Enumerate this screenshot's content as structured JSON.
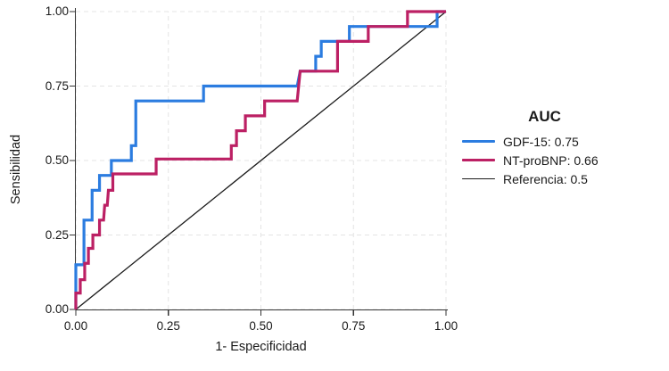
{
  "chart_data": {
    "type": "line",
    "subtype": "roc-step-curves",
    "xlabel": "1- Especificidad",
    "ylabel": "Sensibilidad",
    "xlim": [
      0,
      1
    ],
    "ylim": [
      0,
      1
    ],
    "grid": "dashed-light",
    "x_ticks": [
      {
        "v": 0.0,
        "label": "0.00"
      },
      {
        "v": 0.25,
        "label": "0.25"
      },
      {
        "v": 0.5,
        "label": "0.50"
      },
      {
        "v": 0.75,
        "label": "0.75"
      },
      {
        "v": 1.0,
        "label": "1.00"
      }
    ],
    "y_ticks": [
      {
        "v": 0.0,
        "label": "0.00"
      },
      {
        "v": 0.25,
        "label": "0.25"
      },
      {
        "v": 0.5,
        "label": "0.50"
      },
      {
        "v": 0.75,
        "label": "0.75"
      },
      {
        "v": 1.0,
        "label": "1.00"
      }
    ],
    "series": [
      {
        "key": "reference",
        "name": "Referencia",
        "auc": 0.5,
        "color": "#1a1a1a",
        "stroke_width": 1.3,
        "points": [
          [
            0,
            0
          ],
          [
            1,
            1
          ]
        ]
      },
      {
        "key": "gdf15",
        "name": "GDF-15",
        "auc": 0.75,
        "color": "#2b7ce0",
        "stroke_width": 3.2,
        "points": [
          [
            0,
            0
          ],
          [
            0,
            0.15
          ],
          [
            0.022,
            0.15
          ],
          [
            0.022,
            0.3
          ],
          [
            0.044,
            0.3
          ],
          [
            0.044,
            0.4
          ],
          [
            0.064,
            0.4
          ],
          [
            0.064,
            0.45
          ],
          [
            0.096,
            0.45
          ],
          [
            0.096,
            0.5
          ],
          [
            0.15,
            0.5
          ],
          [
            0.15,
            0.55
          ],
          [
            0.162,
            0.55
          ],
          [
            0.162,
            0.7
          ],
          [
            0.345,
            0.7
          ],
          [
            0.345,
            0.75
          ],
          [
            0.598,
            0.75
          ],
          [
            0.606,
            0.8
          ],
          [
            0.648,
            0.8
          ],
          [
            0.648,
            0.85
          ],
          [
            0.663,
            0.85
          ],
          [
            0.663,
            0.9
          ],
          [
            0.739,
            0.9
          ],
          [
            0.739,
            0.95
          ],
          [
            0.976,
            0.95
          ],
          [
            0.976,
            1
          ],
          [
            1,
            1
          ]
        ]
      },
      {
        "key": "ntprobnp",
        "name": "NT-proBNP",
        "auc": 0.66,
        "color": "#bc2064",
        "stroke_width": 3.2,
        "points": [
          [
            0,
            0
          ],
          [
            0,
            0.055
          ],
          [
            0.012,
            0.055
          ],
          [
            0.012,
            0.1
          ],
          [
            0.024,
            0.1
          ],
          [
            0.024,
            0.155
          ],
          [
            0.034,
            0.155
          ],
          [
            0.034,
            0.205
          ],
          [
            0.046,
            0.205
          ],
          [
            0.046,
            0.25
          ],
          [
            0.064,
            0.25
          ],
          [
            0.064,
            0.3
          ],
          [
            0.075,
            0.3
          ],
          [
            0.078,
            0.35
          ],
          [
            0.085,
            0.35
          ],
          [
            0.088,
            0.4
          ],
          [
            0.1,
            0.4
          ],
          [
            0.1,
            0.455
          ],
          [
            0.217,
            0.455
          ],
          [
            0.217,
            0.505
          ],
          [
            0.42,
            0.505
          ],
          [
            0.42,
            0.55
          ],
          [
            0.434,
            0.55
          ],
          [
            0.434,
            0.6
          ],
          [
            0.458,
            0.6
          ],
          [
            0.458,
            0.65
          ],
          [
            0.51,
            0.65
          ],
          [
            0.51,
            0.7
          ],
          [
            0.598,
            0.7
          ],
          [
            0.606,
            0.8
          ],
          [
            0.707,
            0.8
          ],
          [
            0.707,
            0.9
          ],
          [
            0.79,
            0.9
          ],
          [
            0.79,
            0.95
          ],
          [
            0.896,
            0.95
          ],
          [
            0.896,
            1
          ],
          [
            1,
            1
          ]
        ]
      }
    ],
    "legend": {
      "title": "AUC",
      "position": "right",
      "items": [
        {
          "key": "gdf15",
          "label": "GDF-15: 0.75",
          "color": "#2b7ce0"
        },
        {
          "key": "ntprobnp",
          "label": "NT-proBNP: 0.66",
          "color": "#bc2064"
        },
        {
          "key": "reference",
          "label": "Referencia: 0.5",
          "color": "#1a1a1a"
        }
      ]
    },
    "style": {
      "grid_color": "#e4e4e4",
      "axis_color": "#333333",
      "background": "#ffffff"
    }
  }
}
